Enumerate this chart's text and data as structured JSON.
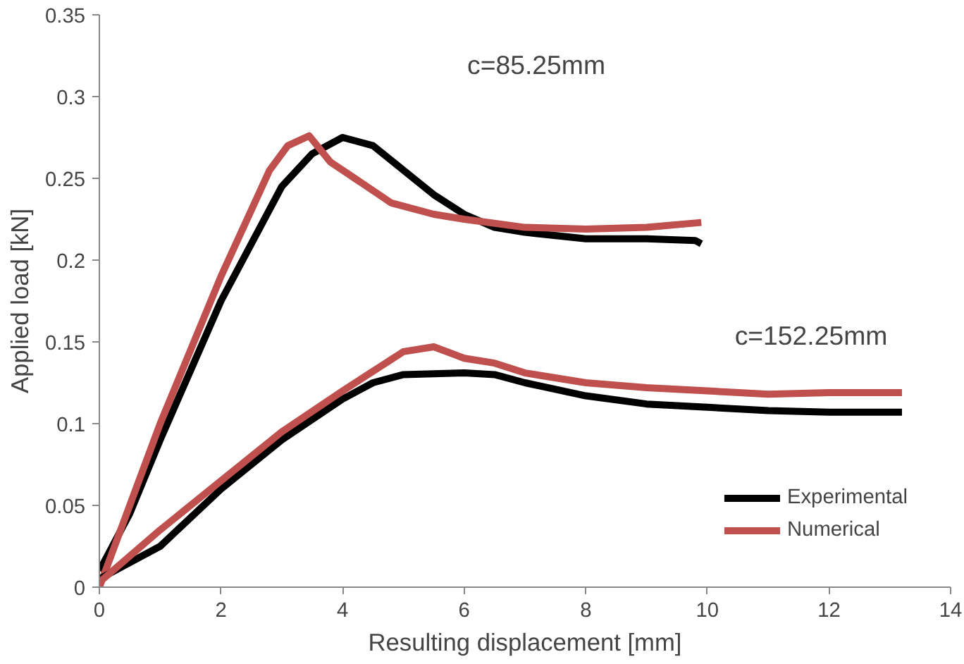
{
  "chart_data": {
    "type": "line",
    "xlabel": "Resulting displacement [mm]",
    "ylabel": "Applied load [kN]",
    "xlim": [
      0,
      14
    ],
    "xticks": [
      0,
      2,
      4,
      6,
      8,
      10,
      12,
      14
    ],
    "ylim": [
      0,
      0.35
    ],
    "yticks": [
      0,
      0.05,
      0.1,
      0.15,
      0.2,
      0.25,
      0.3,
      0.35
    ],
    "grid": false,
    "legend": "bottom right",
    "marker": "none",
    "line_style": "solid",
    "annotations": [
      "c=85.25mm",
      "c=152.25mm"
    ],
    "series": [
      {
        "name": "Experimental",
        "color": "#000000",
        "x": [
          0,
          0.5,
          1,
          2,
          3,
          3.5,
          4,
          4.5,
          5,
          5.5,
          6,
          6.5,
          7,
          8,
          9,
          9.8,
          9.9
        ],
        "values": [
          0.01,
          0.045,
          0.09,
          0.175,
          0.245,
          0.265,
          0.275,
          0.27,
          0.255,
          0.24,
          0.228,
          0.22,
          0.217,
          0.213,
          0.213,
          0.212,
          0.21
        ]
      },
      {
        "name": "Numerical",
        "color": "#c0504d",
        "x": [
          0,
          0.5,
          1,
          2,
          2.8,
          3.1,
          3.45,
          3.8,
          4.2,
          4.8,
          5.5,
          6,
          7,
          8,
          9,
          9.9
        ],
        "values": [
          0,
          0.05,
          0.1,
          0.19,
          0.255,
          0.27,
          0.276,
          0.26,
          0.25,
          0.235,
          0.228,
          0.225,
          0.22,
          0.219,
          0.22,
          0.223
        ]
      },
      {
        "color": "#000000",
        "x": [
          0,
          0.5,
          1,
          2,
          3,
          4,
          4.5,
          5,
          6,
          6.5,
          7,
          8,
          9,
          10,
          11,
          12,
          13.2
        ],
        "values": [
          0.005,
          0.015,
          0.025,
          0.06,
          0.09,
          0.115,
          0.125,
          0.13,
          0.131,
          0.13,
          0.125,
          0.117,
          0.112,
          0.11,
          0.108,
          0.107,
          0.107
        ]
      },
      {
        "color": "#c0504d",
        "x": [
          0,
          1,
          2,
          3,
          4,
          4.5,
          5,
          5.5,
          6,
          6.5,
          7,
          8,
          9,
          10,
          11,
          12,
          13.2
        ],
        "values": [
          0.003,
          0.035,
          0.065,
          0.095,
          0.12,
          0.132,
          0.144,
          0.147,
          0.14,
          0.137,
          0.131,
          0.125,
          0.122,
          0.12,
          0.118,
          0.119,
          0.119
        ]
      }
    ]
  }
}
